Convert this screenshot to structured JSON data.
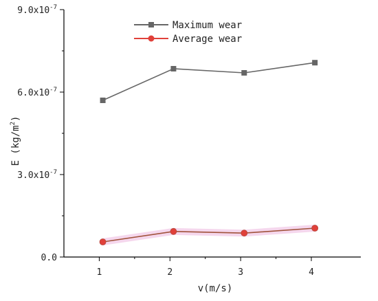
{
  "chart_data": {
    "type": "line",
    "xlabel": "v(m/s)",
    "ylabel_parts": {
      "main": "E (kg/m",
      "sup": "2",
      "end": ")"
    },
    "x_ticks": [
      1,
      2,
      3,
      4
    ],
    "x_tick_labels": [
      "1",
      "2",
      "3",
      "4"
    ],
    "y_ticks": [
      0,
      3e-07,
      6e-07,
      9e-07
    ],
    "y_tick_labels": [
      "0.0",
      "3.0x10",
      "6.0x10",
      "9.0x10"
    ],
    "y_tick_exponent": "-7",
    "xlim": [
      0.5,
      4.7
    ],
    "ylim": [
      0,
      9e-07
    ],
    "grid": false,
    "legend_position": "top-center",
    "series": [
      {
        "name": "Maximum wear",
        "color": "#666666",
        "marker": "square",
        "x": [
          1.05,
          2.05,
          3.05,
          4.05
        ],
        "y": [
          5.7e-07,
          6.85e-07,
          6.7e-07,
          7.07e-07
        ]
      },
      {
        "name": "Average wear",
        "color": "#e0403a",
        "line_color": "#a0523a",
        "marker": "circle",
        "x": [
          1.05,
          2.05,
          3.05,
          4.05
        ],
        "y": [
          5.5e-08,
          9.3e-08,
          8.7e-08,
          1.05e-07
        ]
      }
    ]
  }
}
